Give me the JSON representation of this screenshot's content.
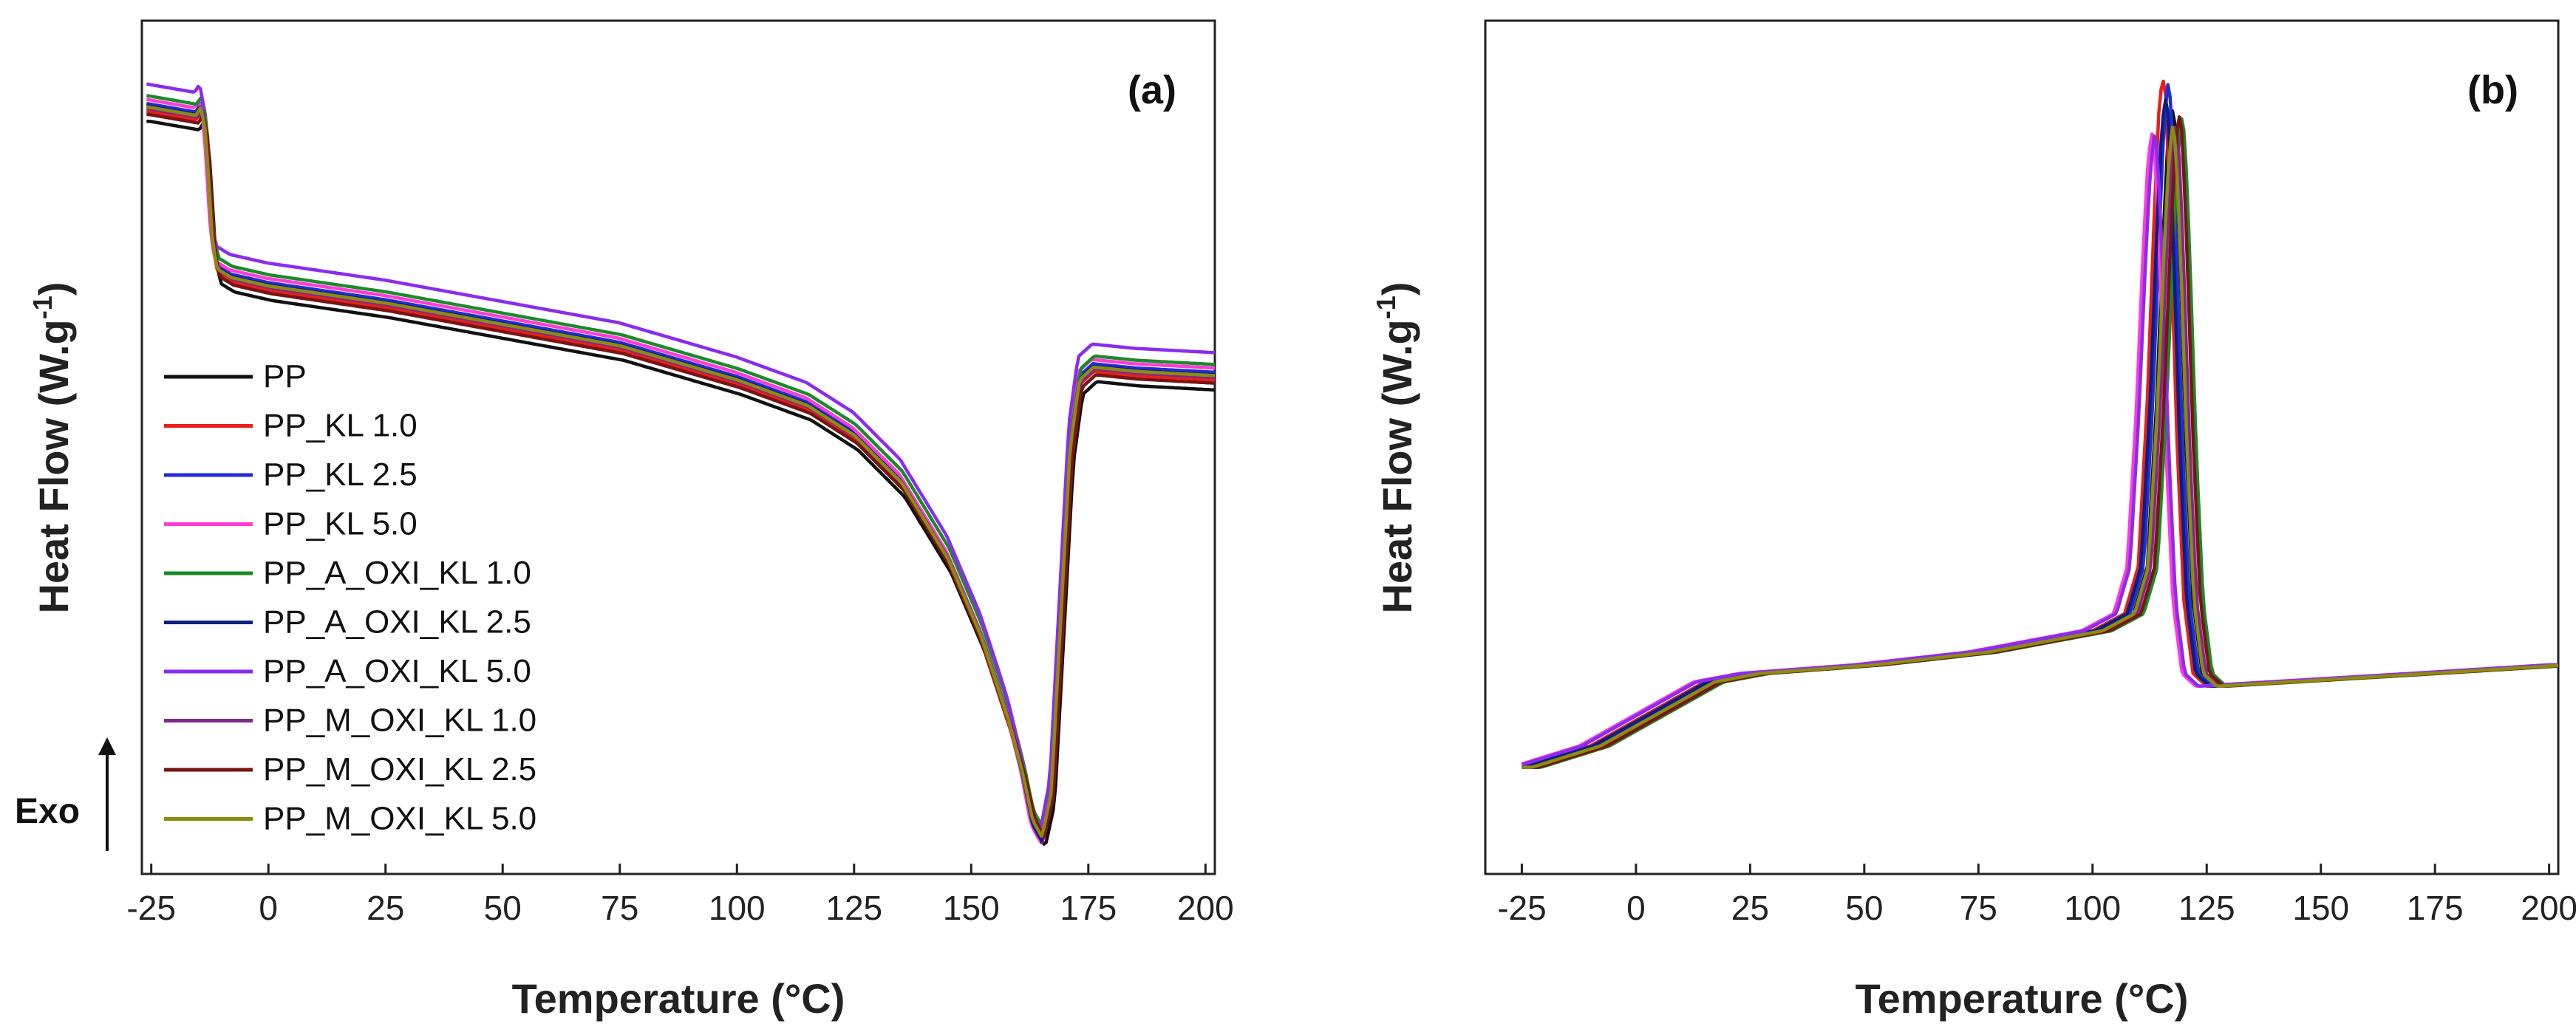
{
  "chart_data": [
    {
      "panel": "a",
      "type": "line",
      "title": "(a)",
      "xlabel": "Temperature (°C)",
      "ylabel": "Heat Flow (W.g",
      "ylabel_superscript": "-1",
      "ylabel_suffix": ")",
      "xlim": [
        -27,
        202
      ],
      "ylim": [
        0,
        100
      ],
      "xticks": [
        "-25",
        "0",
        "25",
        "50",
        "75",
        "100",
        "125",
        "150",
        "175",
        "200"
      ],
      "legend_position": "left",
      "exo_label": "Exo",
      "series": [
        {
          "name": "PP",
          "color": "#111111",
          "offset": -1.8,
          "shift": 0.8,
          "depth": 0
        },
        {
          "name": "PP_KL 1.0",
          "color": "#e8201a",
          "offset": -0.6,
          "shift": 0.2,
          "depth": -0.5
        },
        {
          "name": "PP_KL 2.5",
          "color": "#1f2ed8",
          "offset": 0.3,
          "shift": 0.0,
          "depth": -0.8
        },
        {
          "name": "PP_KL 5.0",
          "color": "#ff3cd6",
          "offset": 0.8,
          "shift": -0.3,
          "depth": -1.0
        },
        {
          "name": "PP_A_OXI_KL 1.0",
          "color": "#1b8a2a",
          "offset": 1.2,
          "shift": 0.3,
          "depth": -0.4
        },
        {
          "name": "PP_A_OXI_KL 2.5",
          "color": "#0c1e80",
          "offset": 0.0,
          "shift": 0.1,
          "depth": -0.6
        },
        {
          "name": "PP_A_OXI_KL 5.0",
          "color": "#8a2cf0",
          "offset": 2.6,
          "shift": -0.2,
          "depth": -1.2
        },
        {
          "name": "PP_M_OXI_KL 1.0",
          "color": "#7c2a8e",
          "offset": -0.3,
          "shift": 0.4,
          "depth": -0.2
        },
        {
          "name": "PP_M_OXI_KL 2.5",
          "color": "#7a1414",
          "offset": -1.0,
          "shift": 0.6,
          "depth": 0.2
        },
        {
          "name": "PP_M_OXI_KL 5.0",
          "color": "#8c8c10",
          "offset": -0.1,
          "shift": 0.1,
          "depth": -0.3
        }
      ],
      "curve_points": [
        [
          -26,
          90.0
        ],
        [
          -15.5,
          89.0
        ],
        [
          -14.5,
          90.0
        ],
        [
          -13.5,
          87.0
        ],
        [
          -12,
          74.0
        ],
        [
          -11,
          71.0
        ],
        [
          -8,
          70.0
        ],
        [
          0,
          69.0
        ],
        [
          25,
          67.0
        ],
        [
          50,
          64.5
        ],
        [
          75,
          62.0
        ],
        [
          100,
          58.0
        ],
        [
          115,
          55.0
        ],
        [
          125,
          51.5
        ],
        [
          135,
          46.0
        ],
        [
          145,
          37.0
        ],
        [
          152,
          28.0
        ],
        [
          158,
          18.0
        ],
        [
          161,
          12.0
        ],
        [
          163,
          7.0
        ],
        [
          165,
          5.0
        ],
        [
          167,
          10.0
        ],
        [
          169,
          30.0
        ],
        [
          171,
          50.0
        ],
        [
          173,
          58.0
        ],
        [
          176,
          59.5
        ],
        [
          185,
          59.0
        ],
        [
          202,
          58.5
        ]
      ]
    },
    {
      "panel": "b",
      "type": "line",
      "title": "(b)",
      "xlabel": "Temperature (°C)",
      "ylabel": "Heat Flow (W.g",
      "ylabel_superscript": "-1",
      "ylabel_suffix": ")",
      "xlim": [
        -33,
        202
      ],
      "ylim": [
        0,
        100
      ],
      "xticks": [
        "-25",
        "0",
        "25",
        "50",
        "75",
        "100",
        "125",
        "150",
        "175",
        "200"
      ],
      "series": [
        {
          "name": "PP",
          "color": "#111111",
          "shift": 2.0,
          "peak": 0.0
        },
        {
          "name": "PP_KL 1.0",
          "color": "#e8201a",
          "shift": 0.0,
          "peak": 3.5
        },
        {
          "name": "PP_KL 2.5",
          "color": "#1f2ed8",
          "shift": 1.2,
          "peak": 2.5
        },
        {
          "name": "PP_KL 5.0",
          "color": "#ff3cd6",
          "shift": -2.4,
          "peak": -3.0
        },
        {
          "name": "PP_A_OXI_KL 1.0",
          "color": "#1b8a2a",
          "shift": 4.2,
          "peak": -1.5
        },
        {
          "name": "PP_A_OXI_KL 2.5",
          "color": "#0c1e80",
          "shift": 0.6,
          "peak": 1.0
        },
        {
          "name": "PP_A_OXI_KL 5.0",
          "color": "#8a2cf0",
          "shift": -1.8,
          "peak": -3.5
        },
        {
          "name": "PP_M_OXI_KL 1.0",
          "color": "#7c2a8e",
          "shift": 2.8,
          "peak": -2.0
        },
        {
          "name": "PP_M_OXI_KL 2.5",
          "color": "#7a1414",
          "shift": 3.6,
          "peak": -1.0
        },
        {
          "name": "PP_M_OXI_KL 5.0",
          "color": "#8c8c10",
          "shift": 2.2,
          "peak": -2.5
        }
      ],
      "curve_points": [
        [
          -25,
          12.5
        ],
        [
          -10,
          15.0
        ],
        [
          0,
          18.0
        ],
        [
          15,
          22.5
        ],
        [
          25,
          23.5
        ],
        [
          50,
          24.5
        ],
        [
          75,
          26.0
        ],
        [
          100,
          28.5
        ],
        [
          107,
          30.5
        ],
        [
          110,
          36.0
        ],
        [
          112,
          55.0
        ],
        [
          113.5,
          75.0
        ],
        [
          114.5,
          86.0
        ],
        [
          115.3,
          90.0
        ],
        [
          116,
          88.0
        ],
        [
          117,
          75.0
        ],
        [
          118.5,
          50.0
        ],
        [
          120,
          32.0
        ],
        [
          122,
          23.5
        ],
        [
          125,
          22.0
        ],
        [
          150,
          22.8
        ],
        [
          175,
          23.6
        ],
        [
          202,
          24.5
        ]
      ]
    }
  ]
}
